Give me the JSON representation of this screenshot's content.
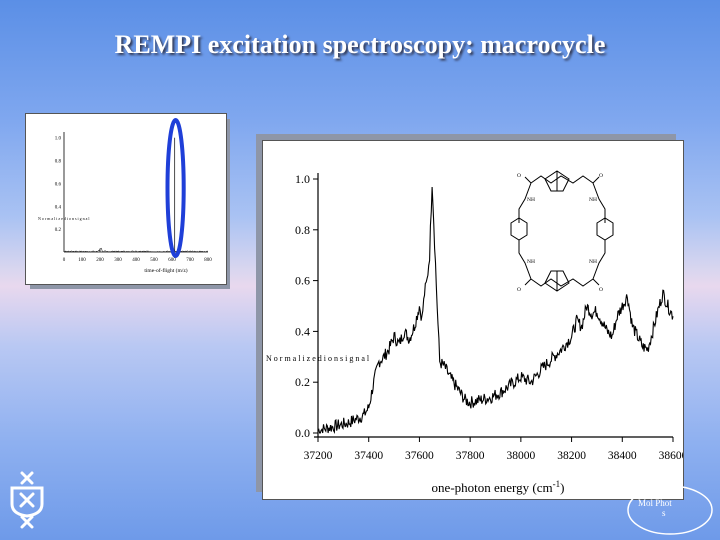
{
  "slide": {
    "title": "REMPI excitation spectroscopy: macrocycle"
  },
  "inset_chart": {
    "type": "line",
    "x_ticks": [
      "0",
      "100",
      "200",
      "300",
      "400",
      "500",
      "600",
      "700",
      "800"
    ],
    "y_ticks": [
      "0.2",
      "0.4",
      "0.6",
      "0.8",
      "1.0"
    ],
    "xlabel": "time-of-flight (m/z)",
    "ylabel": "N o r m a l i z e d  i o n  s i g n a l",
    "xlim": [
      0,
      800
    ],
    "ylim": [
      0,
      1.05
    ],
    "highlight": {
      "shape": "ellipse",
      "color": "#1f3fd8",
      "x_range": [
        575,
        665
      ]
    },
    "peaks": [
      {
        "x": 200,
        "y": 0.03
      },
      {
        "x": 615,
        "y": 1.0
      }
    ]
  },
  "chart_data": {
    "type": "line",
    "xlabel": "one-photon energy (cm",
    "xlabel_sup": "-1",
    "xlabel_tail": ")",
    "ylabel": "N o r m a l i z e d  i o n  s i g n a l",
    "xlim": [
      37200,
      38600
    ],
    "ylim": [
      0.0,
      1.0
    ],
    "x_ticks": [
      "37200",
      "37400",
      "37600",
      "37800",
      "38000",
      "38200",
      "38400",
      "38600"
    ],
    "y_ticks": [
      "0.0",
      "0.2",
      "0.4",
      "0.6",
      "0.8",
      "1.0"
    ],
    "series": [
      {
        "color": "#000000",
        "x": [
          37200,
          37240,
          37280,
          37320,
          37360,
          37380,
          37400,
          37420,
          37440,
          37460,
          37480,
          37500,
          37520,
          37540,
          37560,
          37580,
          37600,
          37610,
          37620,
          37630,
          37640,
          37650,
          37660,
          37670,
          37680,
          37700,
          37720,
          37740,
          37760,
          37780,
          37800,
          37840,
          37880,
          37920,
          37960,
          38000,
          38040,
          38080,
          38120,
          38160,
          38200,
          38220,
          38240,
          38260,
          38280,
          38300,
          38320,
          38340,
          38360,
          38380,
          38400,
          38420,
          38440,
          38460,
          38480,
          38500,
          38520,
          38540,
          38560,
          38580,
          38600
        ],
        "y": [
          0.01,
          0.02,
          0.03,
          0.04,
          0.06,
          0.07,
          0.1,
          0.2,
          0.28,
          0.3,
          0.33,
          0.38,
          0.35,
          0.4,
          0.37,
          0.42,
          0.5,
          0.45,
          0.55,
          0.6,
          0.7,
          0.99,
          0.75,
          0.5,
          0.28,
          0.26,
          0.22,
          0.19,
          0.16,
          0.13,
          0.12,
          0.13,
          0.14,
          0.16,
          0.19,
          0.22,
          0.2,
          0.25,
          0.29,
          0.33,
          0.38,
          0.44,
          0.42,
          0.5,
          0.47,
          0.48,
          0.44,
          0.4,
          0.38,
          0.46,
          0.5,
          0.54,
          0.42,
          0.38,
          0.34,
          0.33,
          0.4,
          0.48,
          0.55,
          0.5,
          0.46
        ]
      }
    ],
    "grid": false,
    "legend": "none",
    "inset": "structural formula of macrocycle (top-right)"
  },
  "molecule_labels": {
    "nh_1": "NH",
    "nh_2": "NH",
    "nh_3": "NH",
    "nh_4": "NH",
    "o_1": "O",
    "o_2": "O",
    "o_3": "O",
    "o_4": "O"
  },
  "logos": {
    "uva": "university-shield-logo",
    "molphot_line1": "Mol   Phot",
    "molphot_line2": "s"
  }
}
